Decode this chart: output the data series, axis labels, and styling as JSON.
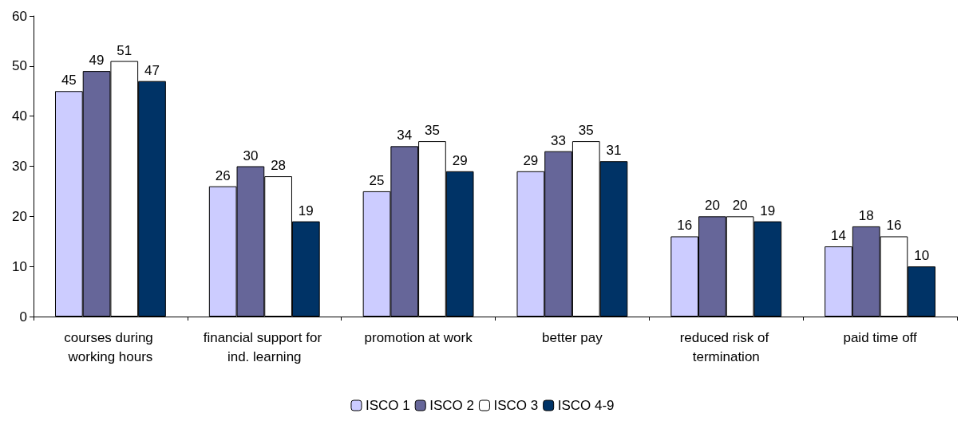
{
  "chart_data": {
    "type": "bar",
    "categories": [
      "courses during working hours",
      "financial support for ind. learning",
      "promotion at work",
      "better pay",
      "reduced risk of termination",
      "paid time off"
    ],
    "series": [
      {
        "name": "ISCO 1",
        "color": "#ccccff",
        "values": [
          45,
          26,
          25,
          29,
          16,
          14
        ]
      },
      {
        "name": "ISCO 2",
        "color": "#666699",
        "values": [
          49,
          30,
          34,
          33,
          20,
          18
        ]
      },
      {
        "name": "ISCO 3",
        "color": "#ffffff",
        "values": [
          51,
          28,
          35,
          35,
          20,
          16
        ]
      },
      {
        "name": "ISCO 4-9",
        "color": "#003366",
        "values": [
          47,
          19,
          29,
          31,
          19,
          10
        ]
      }
    ],
    "ylim": [
      0,
      60
    ],
    "yticks": [
      0,
      10,
      20,
      30,
      40,
      50,
      60
    ],
    "grid": false,
    "legend": "bottom",
    "data_labels": true
  }
}
